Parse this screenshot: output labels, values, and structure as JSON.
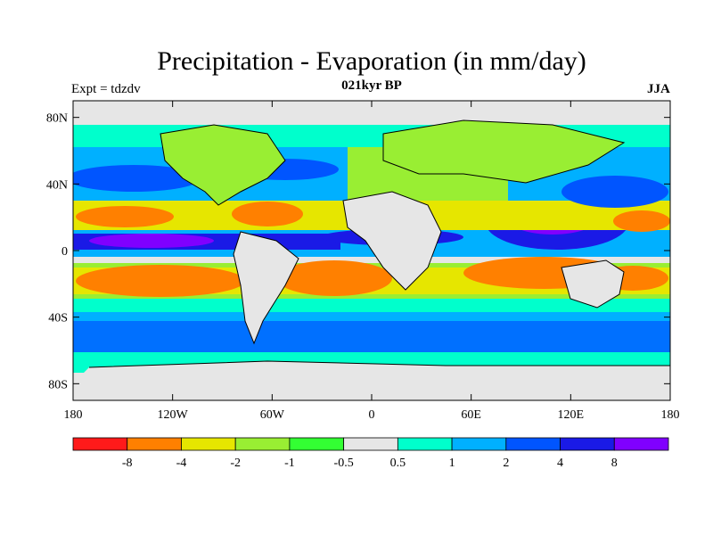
{
  "title": "Precipitation - Evaporation (in mm/day)",
  "left_string": "Expt = tdzdv",
  "center_string": "021kyr BP",
  "right_string": "JJA",
  "lat_ticks": [
    "80N",
    "40N",
    "0",
    "40S",
    "80S"
  ],
  "lon_ticks": [
    "180",
    "120W",
    "60W",
    "0",
    "60E",
    "120E",
    "180"
  ],
  "legend": {
    "colors": [
      "#ff1a1a",
      "#ff8000",
      "#e6e600",
      "#99ee33",
      "#33ff33",
      "#e6e6e6",
      "#00ffcc",
      "#00b0ff",
      "#0055ff",
      "#1a1ae6",
      "#8000ff"
    ],
    "labels": [
      "-8",
      "-4",
      "-2",
      "-1",
      "-0.5",
      "0.5",
      "1",
      "2",
      "4",
      "8"
    ]
  },
  "palette": {
    "ocean_default": "#e6e6e6",
    "coast": "#000000"
  }
}
